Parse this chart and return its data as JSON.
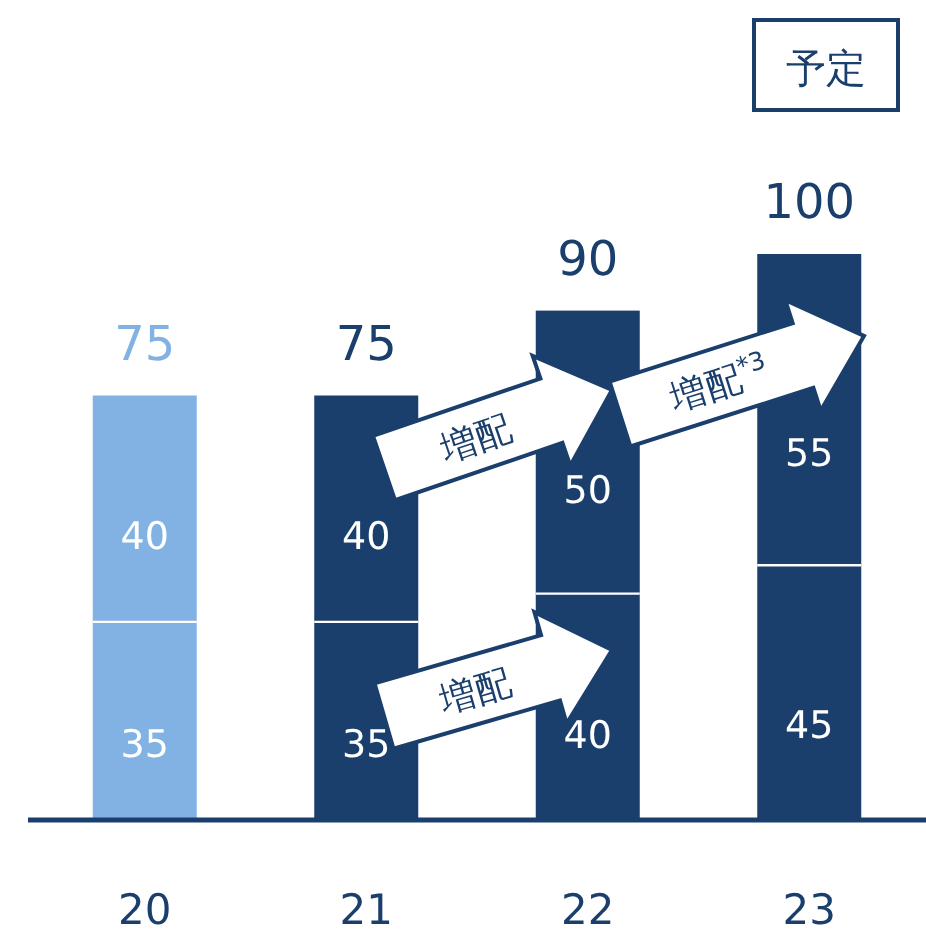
{
  "chart_data": {
    "type": "bar",
    "stacked": true,
    "data_labels": true,
    "categories": [
      "20",
      "21",
      "22",
      "23"
    ],
    "series": [
      {
        "colors": [
          "#82b1e4",
          "#1b3f6c",
          "#1b3f6c",
          "#1b3f6c"
        ],
        "values": [
          35,
          35,
          40,
          45
        ]
      },
      {
        "colors": [
          "#82b1e4",
          "#1b3f6c",
          "#1b3f6c",
          "#1b3f6c"
        ],
        "values": [
          40,
          40,
          50,
          55
        ]
      }
    ],
    "totals": [
      "75",
      "75",
      "90",
      "100"
    ],
    "annotations": [
      "予定",
      "増配",
      "増配",
      "増配$^{*3}$"
    ]
  }
}
